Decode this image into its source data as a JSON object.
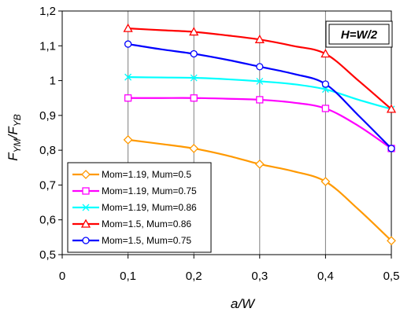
{
  "chart_data": {
    "type": "line",
    "x": [
      0.1,
      0.2,
      0.3,
      0.4,
      0.5
    ],
    "xlim": [
      0,
      0.5
    ],
    "ylim": [
      0.5,
      1.2
    ],
    "xticks": [
      "0",
      "0,1",
      "0,2",
      "0,3",
      "0,4",
      "0,5"
    ],
    "yticks": [
      "0,5",
      "0,6",
      "0,7",
      "0,8",
      "0,9",
      "1",
      "1,1",
      "1,2"
    ],
    "xlabel": "a/W",
    "ylabel_main": "F",
    "ylabel_sub1": "YM",
    "ylabel_sep": "/F",
    "ylabel_sub2": "YB",
    "grid": "vertical",
    "legend_position": "bottom-left",
    "annotation": "H=W/2",
    "series": [
      {
        "name": "Mom=1.19, Mum=0.5",
        "color": "#ff9900",
        "marker": "diamond",
        "values": [
          0.83,
          0.805,
          0.76,
          0.71,
          0.54
        ],
        "curve": [
          [
            0.1,
            0.83
          ],
          [
            0.15,
            0.818
          ],
          [
            0.2,
            0.805
          ],
          [
            0.25,
            0.785
          ],
          [
            0.3,
            0.76
          ],
          [
            0.35,
            0.74
          ],
          [
            0.4,
            0.71
          ],
          [
            0.45,
            0.63
          ],
          [
            0.5,
            0.54
          ]
        ]
      },
      {
        "name": "Mom=1.19, Mum=0.75",
        "color": "#ff00ff",
        "marker": "square",
        "values": [
          0.95,
          0.95,
          0.945,
          0.92,
          0.805
        ],
        "curve": [
          [
            0.1,
            0.95
          ],
          [
            0.15,
            0.95
          ],
          [
            0.2,
            0.95
          ],
          [
            0.25,
            0.948
          ],
          [
            0.3,
            0.945
          ],
          [
            0.35,
            0.937
          ],
          [
            0.4,
            0.92
          ],
          [
            0.45,
            0.87
          ],
          [
            0.5,
            0.805
          ]
        ]
      },
      {
        "name": "Mom=1.19, Mum=0.86",
        "color": "#00ffff",
        "marker": "x",
        "values": [
          1.01,
          1.008,
          0.998,
          0.975,
          0.918
        ],
        "curve": [
          [
            0.1,
            1.01
          ],
          [
            0.15,
            1.009
          ],
          [
            0.2,
            1.008
          ],
          [
            0.25,
            1.004
          ],
          [
            0.3,
            0.998
          ],
          [
            0.35,
            0.99
          ],
          [
            0.4,
            0.975
          ],
          [
            0.45,
            0.945
          ],
          [
            0.5,
            0.918
          ]
        ]
      },
      {
        "name": "Mom=1.5, Mum=0.86",
        "color": "#ff0000",
        "marker": "triangle",
        "values": [
          1.15,
          1.14,
          1.118,
          1.077,
          0.918
        ],
        "curve": [
          [
            0.1,
            1.15
          ],
          [
            0.15,
            1.145
          ],
          [
            0.2,
            1.14
          ],
          [
            0.25,
            1.13
          ],
          [
            0.3,
            1.118
          ],
          [
            0.35,
            1.1
          ],
          [
            0.4,
            1.077
          ],
          [
            0.45,
            1.0
          ],
          [
            0.5,
            0.918
          ]
        ]
      },
      {
        "name": "Mom=1.5, Mum=0.75",
        "color": "#0000ff",
        "marker": "circle",
        "values": [
          1.105,
          1.077,
          1.04,
          0.99,
          0.805
        ],
        "curve": [
          [
            0.1,
            1.105
          ],
          [
            0.15,
            1.09
          ],
          [
            0.2,
            1.077
          ],
          [
            0.25,
            1.06
          ],
          [
            0.3,
            1.04
          ],
          [
            0.35,
            1.02
          ],
          [
            0.4,
            0.99
          ],
          [
            0.45,
            0.9
          ],
          [
            0.5,
            0.805
          ]
        ]
      }
    ]
  }
}
